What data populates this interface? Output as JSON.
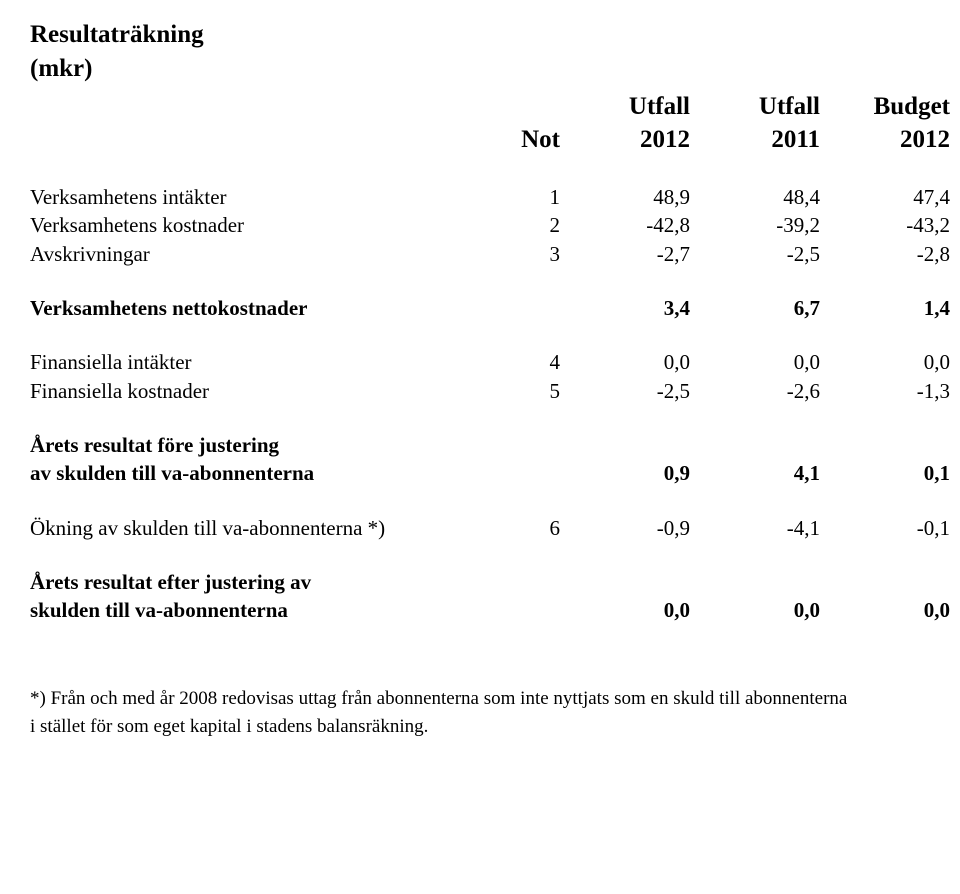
{
  "title": "Resultaträkning",
  "subtitle": "(mkr)",
  "header": {
    "note": "Not",
    "col1_top": "Utfall",
    "col1_bot": "2012",
    "col2_top": "Utfall",
    "col2_bot": "2011",
    "col3_top": "Budget",
    "col3_bot": "2012"
  },
  "rows": [
    {
      "label": "Verksamhetens intäkter",
      "bold": false,
      "note": "1",
      "c1": "48,9",
      "c2": "48,4",
      "c3": "47,4"
    },
    {
      "label": "Verksamhetens kostnader",
      "bold": false,
      "note": "2",
      "c1": "-42,8",
      "c2": "-39,2",
      "c3": "-43,2"
    },
    {
      "label": "Avskrivningar",
      "bold": false,
      "note": "3",
      "c1": "-2,7",
      "c2": "-2,5",
      "c3": "-2,8"
    },
    {
      "spacer": true
    },
    {
      "label": "Verksamhetens nettokostnader",
      "bold": true,
      "note": "",
      "c1": "3,4",
      "c2": "6,7",
      "c3": "1,4"
    },
    {
      "spacer": true
    },
    {
      "label": "Finansiella intäkter",
      "bold": false,
      "note": "4",
      "c1": "0,0",
      "c2": "0,0",
      "c3": "0,0"
    },
    {
      "label": "Finansiella kostnader",
      "bold": false,
      "note": "5",
      "c1": "-2,5",
      "c2": "-2,6",
      "c3": "-1,3"
    },
    {
      "spacer": true
    },
    {
      "label": "Årets resultat före justering",
      "bold": true,
      "note": "",
      "c1": "",
      "c2": "",
      "c3": ""
    },
    {
      "label": "av skulden till va-abonnenterna",
      "bold": true,
      "note": "",
      "c1": "0,9",
      "c2": "4,1",
      "c3": "0,1"
    },
    {
      "spacer": true
    },
    {
      "label": "Ökning av skulden till va-abonnenterna *)",
      "bold": false,
      "note": "6",
      "c1": "-0,9",
      "c2": "-4,1",
      "c3": "-0,1"
    },
    {
      "spacer": true
    },
    {
      "label": "Årets resultat efter justering av",
      "bold": true,
      "note": "",
      "c1": "",
      "c2": "",
      "c3": ""
    },
    {
      "label": "skulden till va-abonnenterna",
      "bold": true,
      "note": "",
      "c1": "0,0",
      "c2": "0,0",
      "c3": "0,0"
    }
  ],
  "footnote": "*) Från och med år 2008 redovisas uttag från abonnenterna som inte nyttjats som en skuld till abonnenterna i stället för som eget kapital i stadens balansräkning."
}
